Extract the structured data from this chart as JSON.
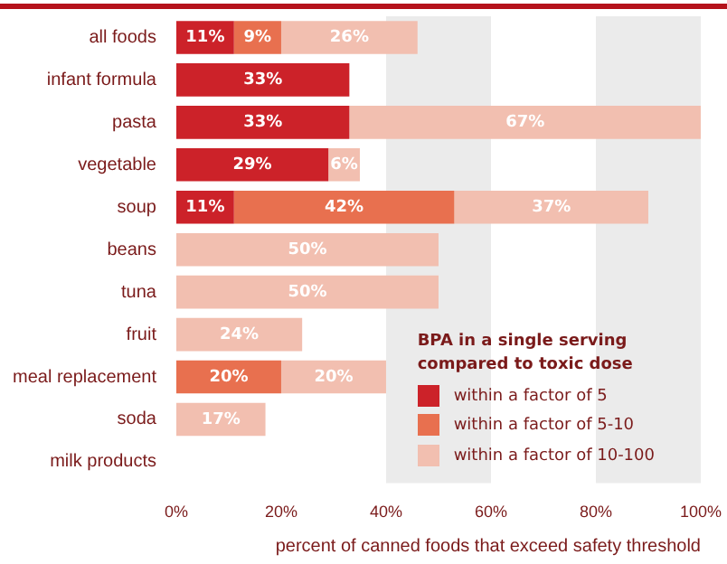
{
  "chart_data": {
    "type": "bar",
    "orientation": "horizontal",
    "stacked": true,
    "xlabel": "percent of canned foods that exceed safety threshold",
    "legend_title": "BPA in a single serving compared to toxic dose",
    "categories": [
      "all foods",
      "infant formula",
      "pasta",
      "vegetable",
      "soup",
      "beans",
      "tuna",
      "fruit",
      "meal replacement",
      "soda",
      "milk products"
    ],
    "series": [
      {
        "name": "within a factor of 5",
        "color": "#cc2229",
        "values": [
          11,
          33,
          33,
          29,
          11,
          null,
          null,
          null,
          null,
          null,
          null
        ],
        "value_labels": [
          "11%",
          "33%",
          "33%",
          "29%",
          "11%",
          null,
          null,
          null,
          null,
          null,
          null
        ]
      },
      {
        "name": "within a factor of 5-10",
        "color": "#e8704f",
        "values": [
          9,
          null,
          null,
          null,
          42,
          null,
          null,
          null,
          20,
          null,
          null
        ],
        "value_labels": [
          "9%",
          null,
          null,
          null,
          "42%",
          null,
          null,
          null,
          "20%",
          null,
          null
        ]
      },
      {
        "name": "within a factor of 10-100",
        "color": "#f2bfb0",
        "values": [
          26,
          null,
          67,
          6,
          37,
          50,
          50,
          24,
          20,
          17,
          null
        ],
        "value_labels": [
          "26%",
          null,
          "67%",
          "6%",
          "37%",
          "50%",
          "50%",
          "24%",
          "20%",
          "17%",
          null
        ]
      }
    ],
    "xlim": [
      0,
      100
    ],
    "xticks": [
      {
        "value": 0,
        "label": "0%"
      },
      {
        "value": 20,
        "label": "20%"
      },
      {
        "value": 40,
        "label": "40%"
      },
      {
        "value": 60,
        "label": "60%"
      },
      {
        "value": 80,
        "label": "80%"
      },
      {
        "value": 100,
        "label": "100%"
      }
    ],
    "bands": [
      {
        "axis": "x",
        "from": 40,
        "to": 60,
        "color": "#ebebeb"
      },
      {
        "axis": "x",
        "from": 80,
        "to": 100,
        "color": "#ebebeb"
      }
    ],
    "legend": "bottom right"
  }
}
